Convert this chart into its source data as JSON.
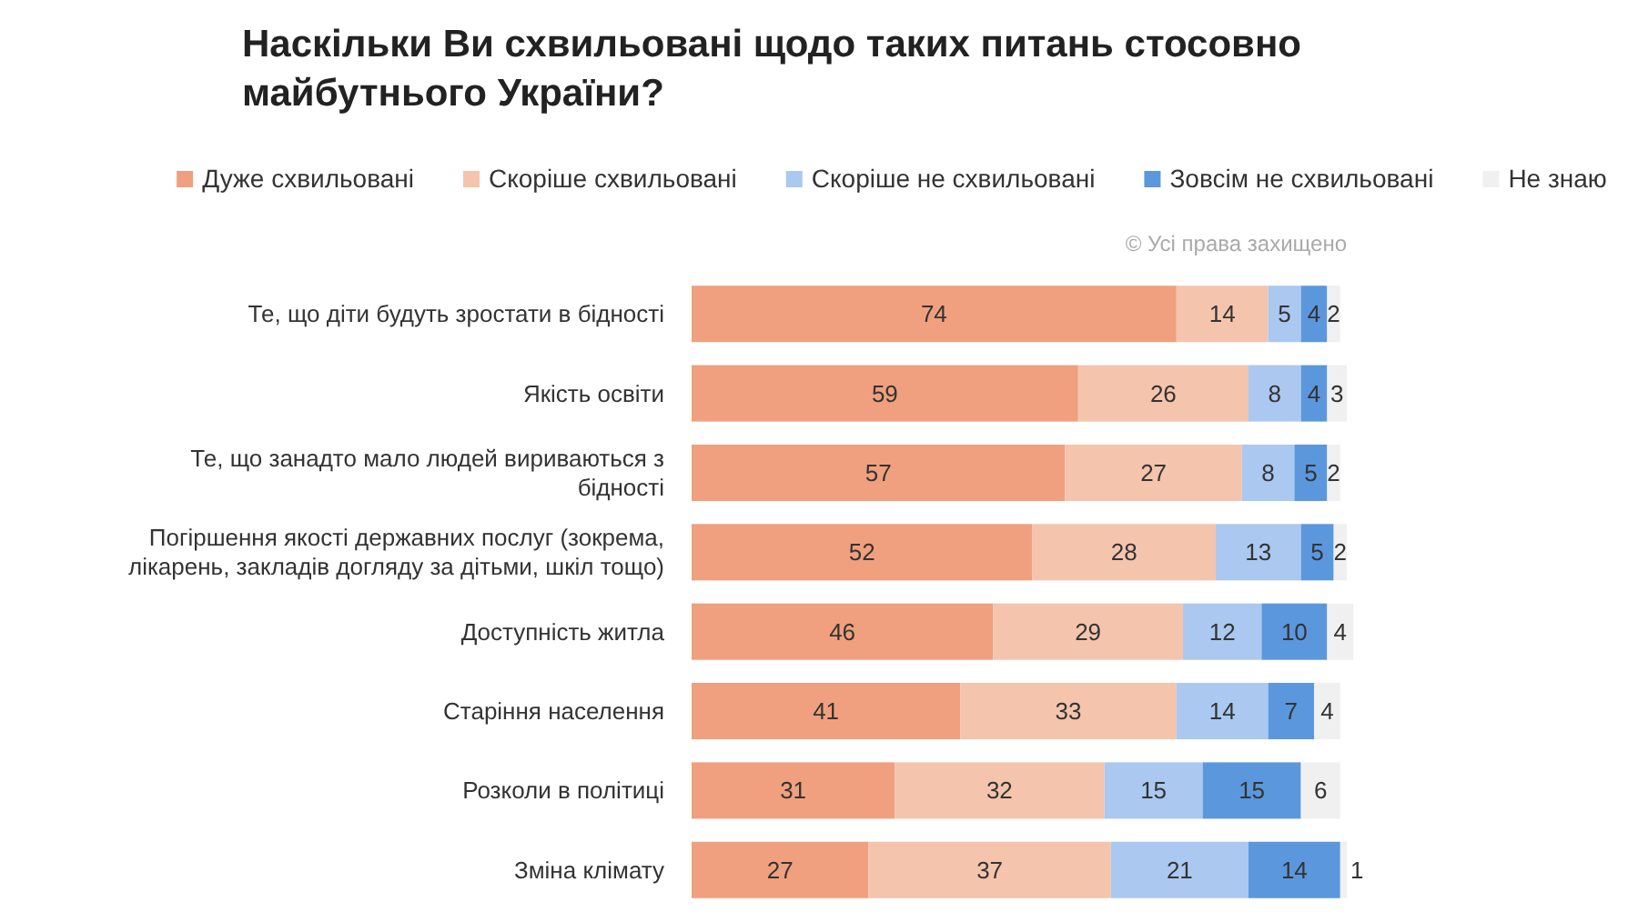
{
  "chart_data": {
    "type": "bar",
    "orientation": "horizontal",
    "stacked": true,
    "data_labels": true,
    "legend": "top",
    "tick_labels": "y",
    "xlim": [
      0,
      101
    ],
    "title": "Наскільки Ви схвильовані щодо таких питань стосовно майбутнього України?",
    "annotations": [
      "© Усі права захищено"
    ],
    "categories": [
      "Те, що діти будуть зростати в бідності",
      "Якість освіти",
      "Те, що занадто мало людей вириваються з бідності",
      "Погіршення якості державних послуг (зокрема, лікарень, закладів догляду за дітьми, шкіл тощо)",
      "Доступність житла",
      "Старіння населення",
      "Розколи в політиці",
      "Зміна клімату"
    ],
    "series": [
      {
        "name": "Дуже схвильовані",
        "color": "#f0a07e",
        "values": [
          74,
          59,
          57,
          52,
          46,
          41,
          31,
          27
        ]
      },
      {
        "name": "Скоріше схвильовані",
        "color": "#f5c4ad",
        "values": [
          14,
          26,
          27,
          28,
          29,
          33,
          32,
          37
        ]
      },
      {
        "name": "Скоріше не схвильовані",
        "color": "#aac8f0",
        "values": [
          5,
          8,
          8,
          13,
          12,
          14,
          15,
          21
        ]
      },
      {
        "name": "Зовсім не схвильовані",
        "color": "#5b97dc",
        "values": [
          4,
          4,
          5,
          5,
          10,
          7,
          15,
          14
        ]
      },
      {
        "name": "Не знаю",
        "color": "#f0f0f0",
        "values": [
          2,
          3,
          2,
          2,
          4,
          4,
          6,
          1
        ]
      }
    ]
  }
}
